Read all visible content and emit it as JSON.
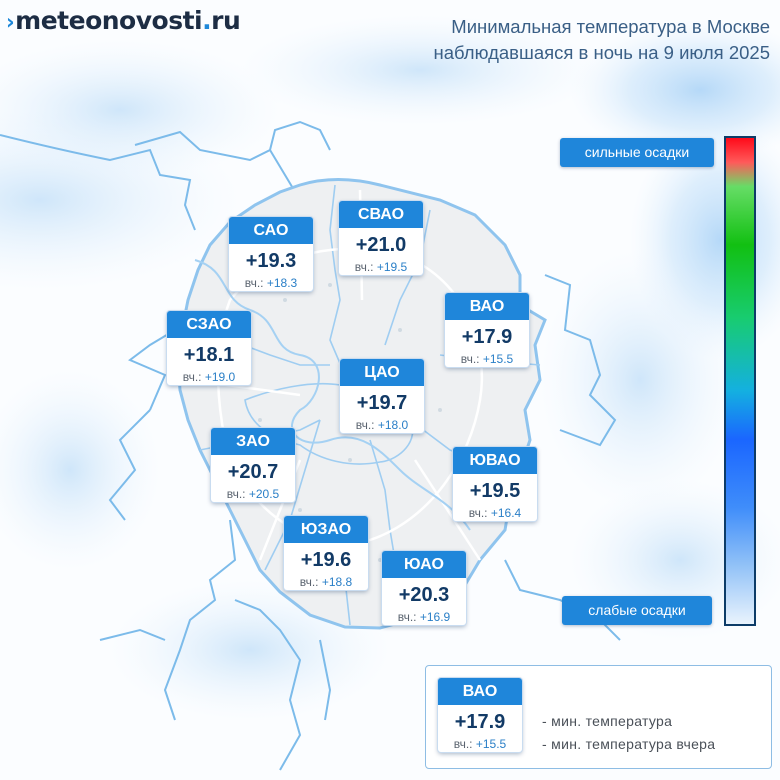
{
  "header": {
    "logo_mark": "›",
    "logo_part1": "meteo",
    "logo_part2": "novosti",
    "logo_dot": ".",
    "logo_tld": "ru",
    "title_line1": "Минимальная температура в Москве",
    "title_line2": "наблюдавшаяся в ночь на 9 июля 2025"
  },
  "districts": [
    {
      "name": "САО",
      "temp": "+19.3",
      "prev_label": "вч.:",
      "prev_value": "+18.3"
    },
    {
      "name": "СВАО",
      "temp": "+21.0",
      "prev_label": "вч.:",
      "prev_value": "+19.5"
    },
    {
      "name": "ВАО",
      "temp": "+17.9",
      "prev_label": "вч.:",
      "prev_value": "+15.5"
    },
    {
      "name": "СЗАО",
      "temp": "+18.1",
      "prev_label": "вч.:",
      "prev_value": "+19.0"
    },
    {
      "name": "ЦАО",
      "temp": "+19.7",
      "prev_label": "вч.:",
      "prev_value": "+18.0"
    },
    {
      "name": "ЗАО",
      "temp": "+20.7",
      "prev_label": "вч.:",
      "prev_value": "+20.5"
    },
    {
      "name": "ЮВАО",
      "temp": "+19.5",
      "prev_label": "вч.:",
      "prev_value": "+16.4"
    },
    {
      "name": "ЮЗАО",
      "temp": "+19.6",
      "prev_label": "вч.:",
      "prev_value": "+18.8"
    },
    {
      "name": "ЮАО",
      "temp": "+20.3",
      "prev_label": "вч.:",
      "prev_value": "+16.9"
    }
  ],
  "precip_scale": {
    "strong_label": "сильные осадки",
    "weak_label": "слабые осадки",
    "colors": [
      "#ff0a1a",
      "#66dd66",
      "#12c012",
      "#14b0e0",
      "#1a66ff",
      "#92c2f7",
      "#e9f3fd"
    ]
  },
  "legend": {
    "example": {
      "name": "ВАО",
      "temp": "+17.9",
      "prev_label": "вч.:",
      "prev_value": "+15.5"
    },
    "line1": "- мин. температура",
    "line2": "- мин. температура вчера"
  },
  "colors": {
    "accent": "#1f86da",
    "boundary": "#6fb1e6",
    "title_text": "#3a5f86",
    "temp_text": "#123a66"
  }
}
